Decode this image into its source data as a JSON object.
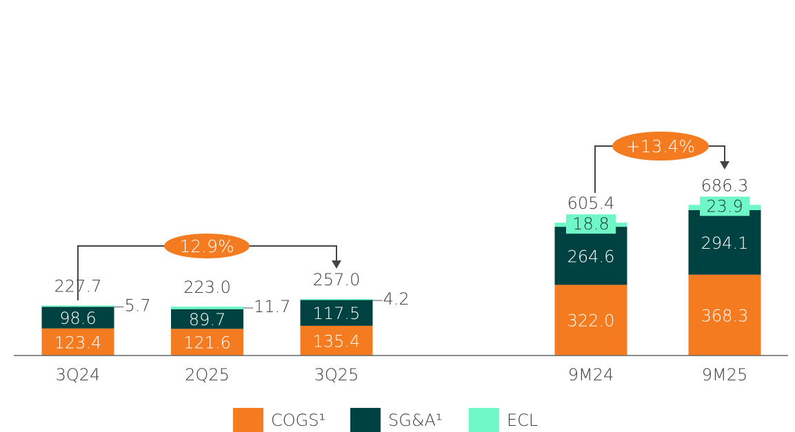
{
  "chart_data": {
    "type": "stacked_bar",
    "categories": [
      "3Q24",
      "2Q25",
      "3Q25",
      "9M24",
      "9M25"
    ],
    "series": [
      {
        "name": "COGS¹",
        "color": "#f47b20",
        "values": [
          123.4,
          121.6,
          135.4,
          322.0,
          368.3
        ],
        "value_labels": [
          "123.4",
          "121.6",
          "135.4",
          "322.0",
          "368.3"
        ]
      },
      {
        "name": "SG&A¹",
        "color": "#004241",
        "values": [
          98.6,
          89.7,
          117.5,
          264.6,
          294.1
        ],
        "value_labels": [
          "98.6",
          "89.7",
          "117.5",
          "264.6",
          "294.1"
        ]
      },
      {
        "name": "ECL",
        "color": "#6ff7c8",
        "values": [
          5.7,
          11.7,
          4.2,
          18.8,
          23.9
        ],
        "value_labels": [
          "5.7",
          "11.7",
          "4.2",
          "18.8",
          "23.9"
        ]
      }
    ],
    "totals": {
      "values": [
        227.7,
        223.0,
        257.0,
        605.4,
        686.3
      ],
      "value_labels": [
        "227.7",
        "223.0",
        "257.0",
        "605.4",
        "686.3"
      ]
    },
    "annotations": [
      "12.9%",
      "+13.4%"
    ],
    "ylim": [
      0,
      700
    ]
  }
}
